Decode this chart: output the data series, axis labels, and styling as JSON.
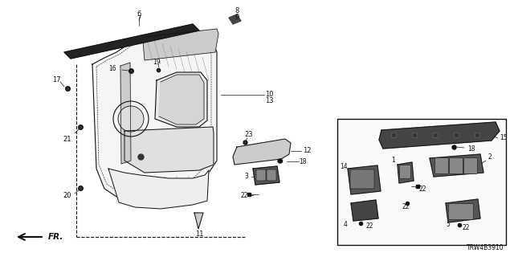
{
  "bg_color": "#ffffff",
  "line_color": "#111111",
  "diagram_code": "TRW4B3910",
  "figsize": [
    6.4,
    3.2
  ],
  "dpi": 100
}
